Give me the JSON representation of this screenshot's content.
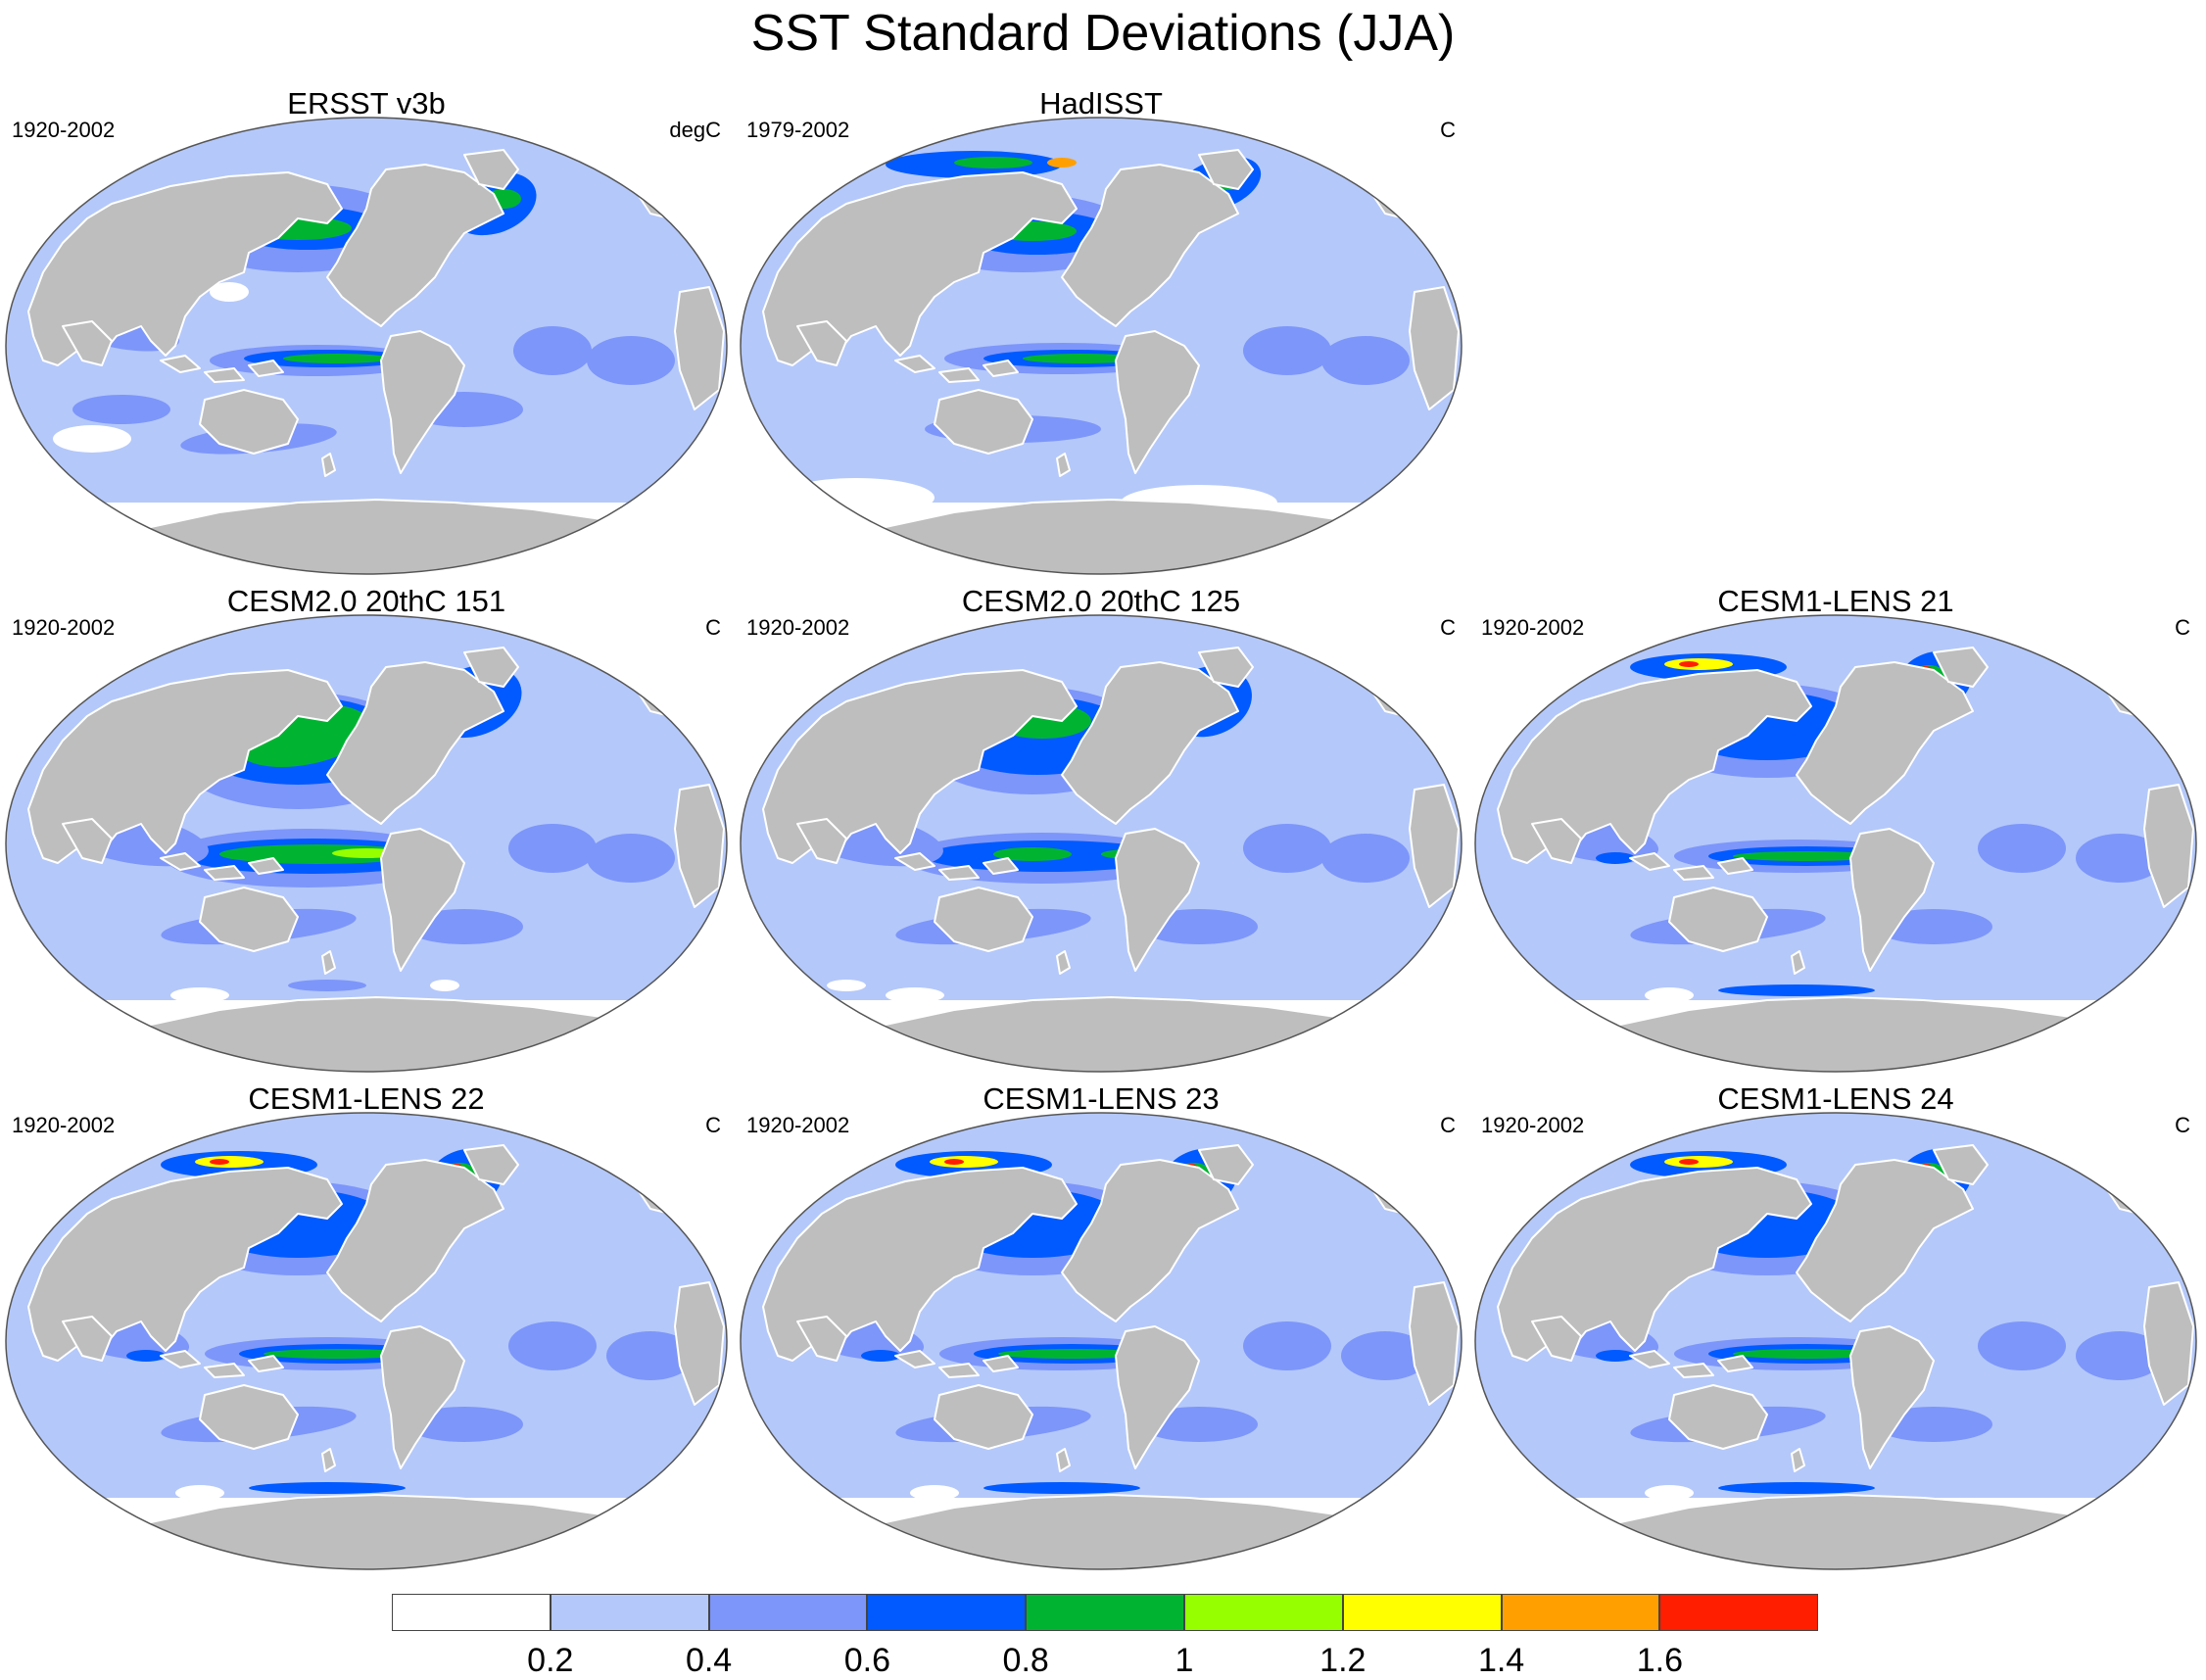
{
  "title": "SST Standard Deviations (JJA)",
  "panels": [
    {
      "title": "ERSST v3b",
      "years": "1920-2002",
      "units": "degC",
      "variant": "obs1"
    },
    {
      "title": "HadISST",
      "years": "1979-2002",
      "units": "C",
      "variant": "obs2"
    },
    {
      "title": "CESM2.0 20thC 151",
      "years": "1920-2002",
      "units": "C",
      "variant": "cesm2a"
    },
    {
      "title": "CESM2.0 20thC 125",
      "years": "1920-2002",
      "units": "C",
      "variant": "cesm2b"
    },
    {
      "title": "CESM1-LENS 21",
      "years": "1920-2002",
      "units": "C",
      "variant": "lens"
    },
    {
      "title": "CESM1-LENS 22",
      "years": "1920-2002",
      "units": "C",
      "variant": "lens"
    },
    {
      "title": "CESM1-LENS 23",
      "years": "1920-2002",
      "units": "C",
      "variant": "lens"
    },
    {
      "title": "CESM1-LENS 24",
      "years": "1920-2002",
      "units": "C",
      "variant": "lens"
    }
  ],
  "colorbar": {
    "labels": [
      "0.2",
      "0.4",
      "0.6",
      "0.8",
      "1",
      "1.2",
      "1.4",
      "1.6"
    ],
    "colors": [
      "#ffffff",
      "#b4c8fa",
      "#7d96fa",
      "#005aff",
      "#00b432",
      "#96ff00",
      "#ffff00",
      "#ffa000",
      "#ff1e00"
    ]
  },
  "colors": {
    "land": "#bebebe",
    "ocean_base": "#b4c8fa",
    "coast": "#ffffff"
  }
}
